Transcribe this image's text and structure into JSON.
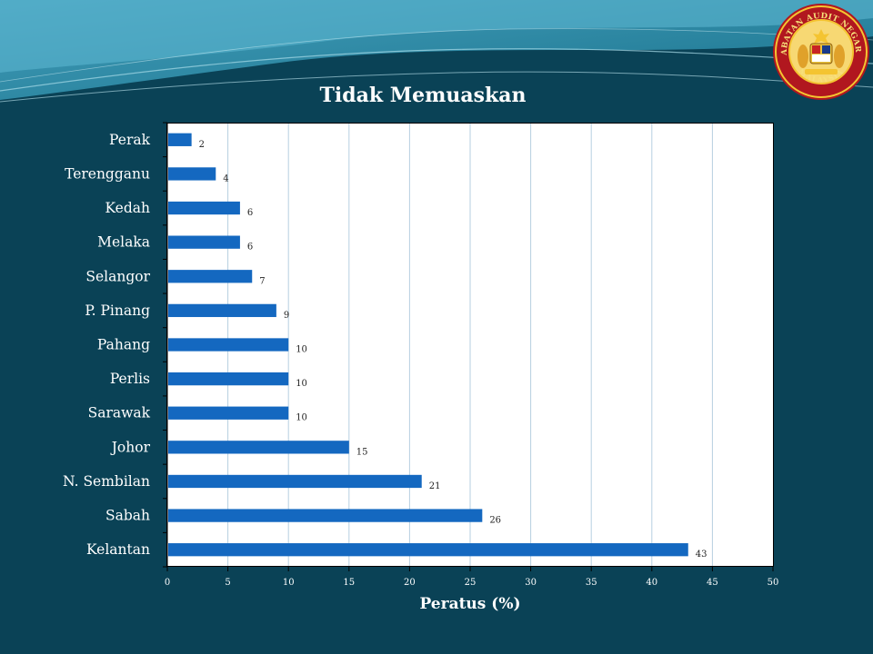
{
  "chart_data": {
    "type": "bar",
    "orientation": "horizontal",
    "title": "Tidak Memuaskan",
    "xlabel": "Peratus (%)",
    "ylabel": "",
    "categories": [
      "Perak",
      "Terengganu",
      "Kedah",
      "Melaka",
      "Selangor",
      "P. Pinang",
      "Pahang",
      "Perlis",
      "Sarawak",
      "Johor",
      "N. Sembilan",
      "Sabah",
      "Kelantan"
    ],
    "values": [
      2,
      4,
      6,
      6,
      7,
      9,
      10,
      10,
      10,
      15,
      21,
      26,
      43
    ],
    "xlim": [
      0,
      50
    ],
    "xticks": [
      0,
      5,
      10,
      15,
      20,
      25,
      30,
      35,
      40,
      45,
      50
    ],
    "grid": true,
    "data_labels": true,
    "colors": {
      "bar": "#1468c0",
      "grid": "#b6cfe0",
      "background": "#0a4256",
      "plot_bg": "#ffffff"
    }
  },
  "logo": {
    "name": "jabatan-audit-negara-logo",
    "text_top": "JABATAN AUDIT NEGARA",
    "text_bottom": "MALAYSIA"
  }
}
